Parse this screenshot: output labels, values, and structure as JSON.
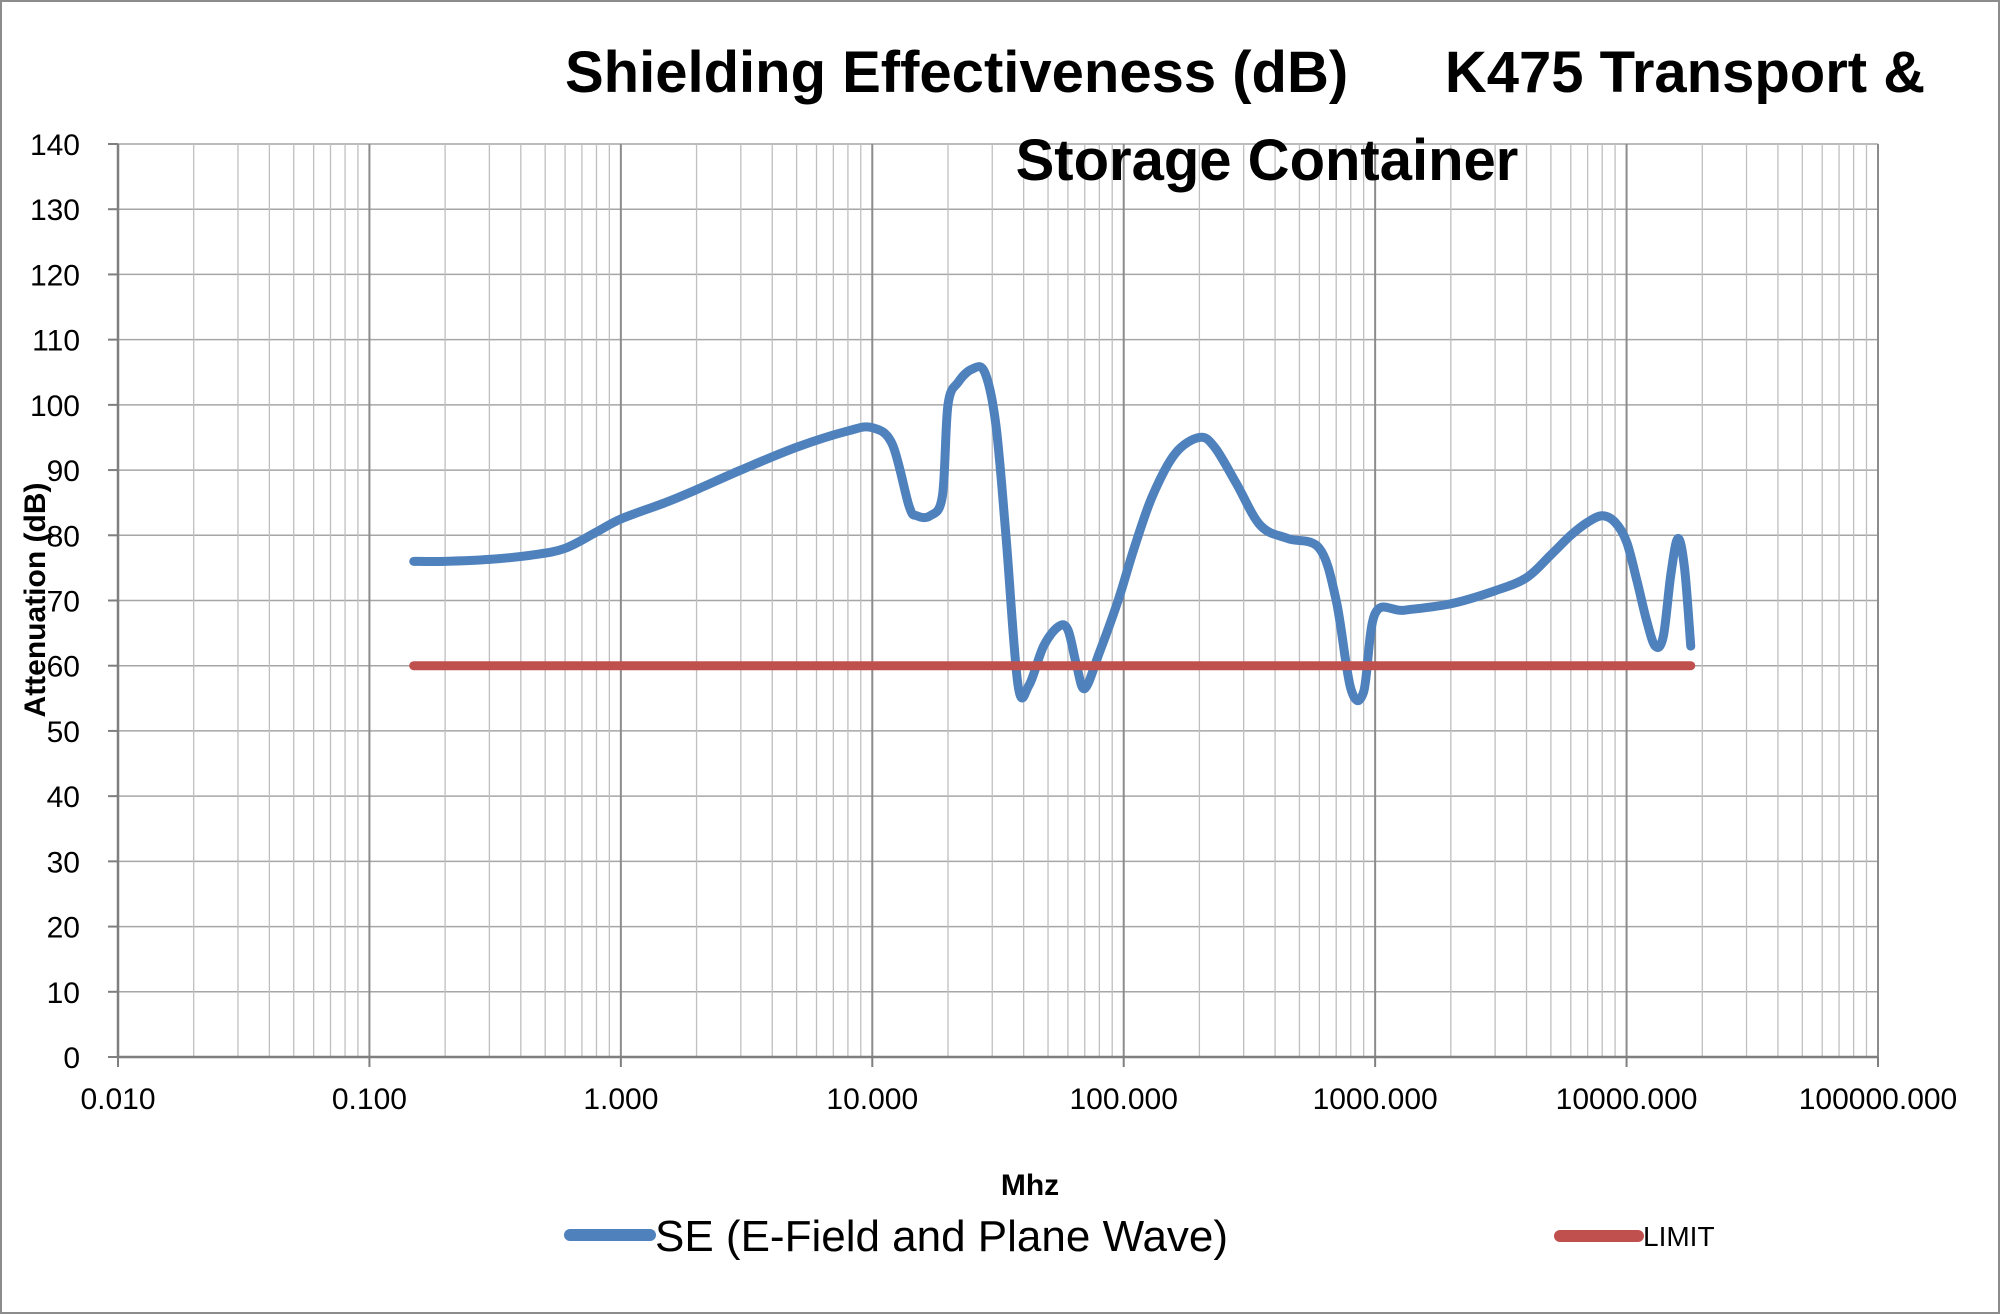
{
  "chart_data": {
    "type": "line",
    "title_line1": "Shielding Effectiveness (dB)      K475 Transport &",
    "title_line2": "Storage Container",
    "xlabel": "Mhz",
    "ylabel": "Attenuation (dB)",
    "x_scale": "log",
    "xlim": [
      0.01,
      100000
    ],
    "ylim": [
      0,
      140
    ],
    "grid": true,
    "legend_position": "bottom",
    "x_tick_labels": [
      "0.010",
      "0.100",
      "1.000",
      "10.000",
      "100.000",
      "1000.000",
      "10000.000",
      "100000.000"
    ],
    "y_tick_labels": [
      "0",
      "10",
      "20",
      "30",
      "40",
      "50",
      "60",
      "70",
      "80",
      "90",
      "100",
      "110",
      "120",
      "130",
      "140"
    ],
    "series": [
      {
        "name": "SE (E-Field and Plane Wave)",
        "color": "#4f81bd",
        "x": [
          0.15,
          0.2,
          0.3,
          0.45,
          0.6,
          0.8,
          1.0,
          1.5,
          2,
          3,
          5,
          8,
          10,
          12,
          14,
          15,
          17,
          19,
          20,
          22,
          25,
          28,
          31,
          34,
          38,
          42,
          48,
          55,
          60,
          65,
          70,
          80,
          95,
          110,
          130,
          160,
          200,
          230,
          280,
          350,
          450,
          600,
          700,
          800,
          900,
          1000,
          1300,
          2000,
          3000,
          4000,
          5000,
          6000,
          7000,
          8000,
          9000,
          10000,
          11000,
          12000,
          13000,
          14000,
          15000,
          16000,
          17000,
          18000
        ],
        "values": [
          76,
          76,
          76.3,
          77,
          78,
          80.5,
          82.5,
          85,
          87,
          90,
          93.5,
          96,
          96.5,
          94,
          84.5,
          83,
          83,
          86,
          100,
          103.5,
          105.5,
          105,
          97,
          80,
          57,
          57,
          63,
          66,
          65.5,
          60,
          56.5,
          62,
          70,
          78,
          86,
          92.5,
          95,
          93.5,
          88,
          81.5,
          79.5,
          78,
          70,
          56.5,
          56,
          68,
          68.5,
          69.5,
          71.5,
          73.5,
          77,
          80,
          82,
          83,
          82,
          79,
          73,
          67,
          63,
          64.5,
          74,
          79.5,
          75,
          63
        ],
        "line_width": 9
      },
      {
        "name": "LIMIT",
        "color": "#c0504d",
        "x": [
          0.15,
          18000
        ],
        "values": [
          60,
          60
        ],
        "line_width": 9
      }
    ]
  }
}
